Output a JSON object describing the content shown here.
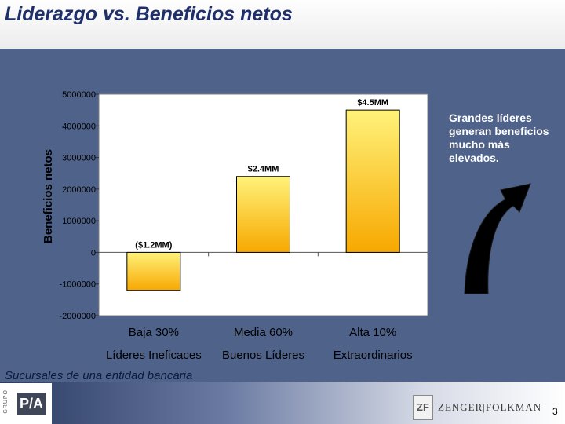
{
  "title": "Liderazgo vs. Beneficios netos",
  "caption": "Sucursales de una entidad bancaria",
  "note": "Grandes líderes generan beneficios mucho más elevados.",
  "page_number": "3",
  "logos": {
    "left_vertical": "GRUPO",
    "left_mark": "P/A",
    "right_mark": "ZF",
    "right_text": "ZENGER|FOLKMAN"
  },
  "colors": {
    "background": "#4f6289",
    "plot_area": "#ffffff",
    "bar_top": "#fff27a",
    "bar_bottom": "#f7a800",
    "title": "#1f2f6a"
  },
  "chart_data": {
    "type": "bar",
    "title": "",
    "ylabel": "Beneficios netos",
    "xlabel": "",
    "ylim": [
      -2000000,
      5000000
    ],
    "yticks": [
      5000000,
      4000000,
      3000000,
      2000000,
      1000000,
      0,
      -1000000,
      -2000000
    ],
    "ytick_labels": [
      "5000000",
      "4000000",
      "3000000",
      "2000000",
      "1000000",
      "0",
      "-1000000",
      "-2000000"
    ],
    "categories": [
      "Baja 30%",
      "Media  60%",
      "Alta 10%"
    ],
    "category_sublabels": [
      "Líderes Ineficaces",
      "Buenos Líderes",
      "Extraordinarios"
    ],
    "values": [
      -1200000,
      2400000,
      4500000
    ],
    "data_labels": [
      "($1.2MM)",
      "$2.4MM",
      "$4.5MM"
    ],
    "grid": false,
    "legend": "none"
  }
}
